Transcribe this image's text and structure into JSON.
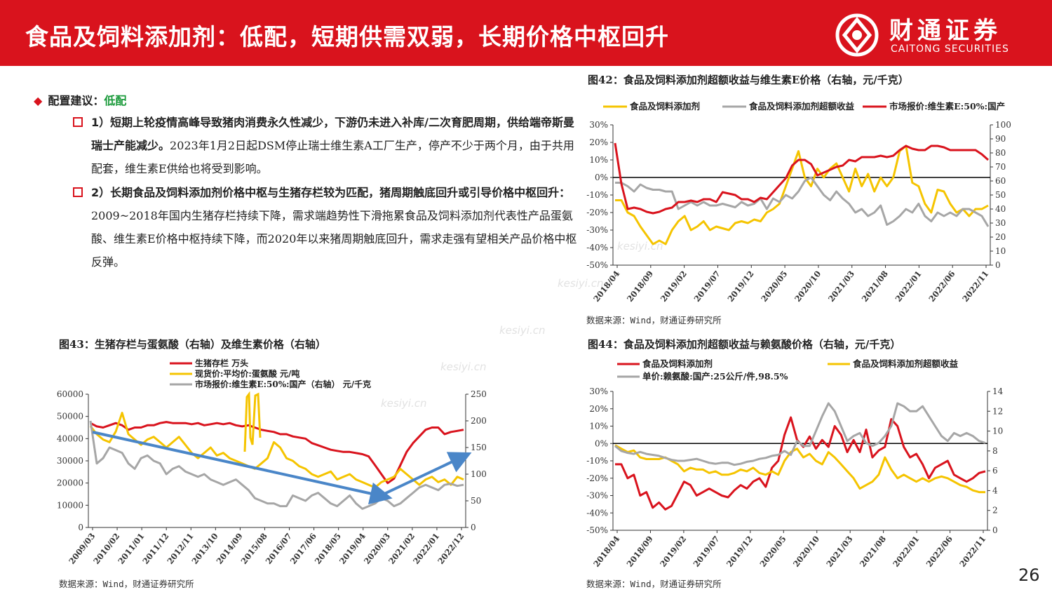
{
  "header": {
    "title": "食品及饲料添加剂：低配，短期供需双弱，长期价格中枢回升",
    "logo_cn": "财通证券",
    "logo_en": "CAITONG SECURITIES"
  },
  "recommendation": {
    "label": "配置建议：",
    "value": "低配"
  },
  "points": [
    {
      "bold": "1）短期上轮疫情高峰导致猪肉消费永久性减少，下游仍未进入补库/二次育肥周期，供给端帝斯曼瑞士产能减少。",
      "text": "2023年1月2日起DSM停止瑞士维生素A工厂生产，停产不少于两个月，由于共用配套，维生素E供给也将受到影响。"
    },
    {
      "bold": "2）长期食品及饲料添加剂价格中枢与生猪存栏较为匹配，猪周期触底回升或引导价格中枢回升：",
      "text": "2009~2018年国内生猪存栏持续下降，需求端趋势性下滑拖累食品及饲料添加剂代表性产品蛋氨酸、维生素E价格中枢持续下降，而2020年以来猪周期触底回升，需求走强有望相关产品价格中枢反弹。"
    }
  ],
  "watermark": "kesiyi.cn",
  "page_number": "26",
  "colors": {
    "red": "#d9131d",
    "yellow": "#f5c400",
    "gray": "#a6a6a6",
    "green": "#1a9a3a",
    "blue": "#4a86c8"
  },
  "chart_data": [
    {
      "id": "fig42",
      "type": "line",
      "title": "图42：食品及饲料添加剂超额收益与维生素E价格（右轴，元/千克）",
      "source": "数据来源：Wind，财通证券研究所",
      "x_ticks": [
        "2018/04",
        "2018/09",
        "2019/02",
        "2019/07",
        "2019/12",
        "2020/05",
        "2020/10",
        "2021/03",
        "2021/08",
        "2022/01",
        "2022/06",
        "2022/11"
      ],
      "y_left": {
        "min": -50,
        "max": 30,
        "step": 10,
        "unit": "%",
        "tick_labels": [
          "30%",
          "20%",
          "10%",
          "0%",
          "-10%",
          "-20%",
          "-30%",
          "-40%",
          "-50%"
        ]
      },
      "y_right": {
        "min": 0,
        "max": 100,
        "step": 10,
        "tick_labels": [
          "100",
          "90",
          "80",
          "70",
          "60",
          "50",
          "40",
          "30",
          "20",
          "10",
          "0"
        ]
      },
      "zero_line": true,
      "series": [
        {
          "name": "食品及饲料添加剂",
          "color": "yellow",
          "axis": "left",
          "values": [
            -13,
            -13,
            -20,
            -22,
            -28,
            -33,
            -38,
            -36,
            -38,
            -30,
            -25,
            -22,
            -30,
            -28,
            -25,
            -30,
            -28,
            -29,
            -30,
            -26,
            -25,
            -26,
            -24,
            -25,
            -20,
            -18,
            -15,
            -5,
            5,
            15,
            0,
            -5,
            5,
            0,
            5,
            8,
            0,
            -8,
            5,
            -5,
            2,
            -8,
            0,
            -5,
            0,
            15,
            18,
            -3,
            -5,
            -15,
            -20,
            -7,
            -8,
            -15,
            -20,
            -18,
            -22,
            -18,
            -18,
            -16
          ]
        },
        {
          "name": "食品及饲料添加剂超额收益",
          "color": "gray",
          "axis": "left",
          "values": [
            -3,
            -3,
            -5,
            -8,
            -4,
            -6,
            -7,
            -7,
            -8,
            -8,
            -18,
            -16,
            -14,
            -16,
            -14,
            -16,
            -16,
            -15,
            -16,
            -17,
            -14,
            -16,
            -15,
            -12,
            -18,
            -12,
            -14,
            -10,
            -12,
            -8,
            -2,
            0,
            -5,
            -10,
            -13,
            -8,
            -12,
            -15,
            -20,
            -18,
            -22,
            -20,
            -16,
            -27,
            -25,
            -22,
            -18,
            -20,
            -15,
            -22,
            -25,
            -20,
            -22,
            -20,
            -22,
            -18,
            -18,
            -20,
            -22,
            -28
          ]
        },
        {
          "name": "市场报价:维生素E:50%:国产",
          "color": "red",
          "axis": "right",
          "values": [
            87,
            58,
            40,
            41,
            40,
            38,
            37,
            38,
            40,
            41,
            45,
            45,
            46,
            45,
            47,
            47,
            45,
            52,
            51,
            50,
            47,
            47,
            45,
            48,
            47,
            52,
            57,
            62,
            71,
            75,
            75,
            72,
            64,
            66,
            68,
            70,
            71,
            75,
            74,
            77,
            77,
            77,
            78,
            77,
            78,
            82,
            85,
            83,
            82,
            82,
            85,
            85,
            84,
            82,
            82,
            82,
            82,
            82,
            79,
            75
          ]
        }
      ]
    },
    {
      "id": "fig43",
      "type": "line",
      "title": "图43：生猪存栏与蛋氨酸（右轴）及维生素价格（右轴）",
      "source": "数据来源：Wind，财通证券研究所",
      "x_ticks": [
        "2009/03",
        "2010/02",
        "2011/01",
        "2011/12",
        "2012/11",
        "2013/10",
        "2014/09",
        "2015/08",
        "2016/07",
        "2017/06",
        "2018/05",
        "2019/04",
        "2020/03",
        "2021/02",
        "2022/01",
        "2022/12"
      ],
      "y_left": {
        "min": 0,
        "max": 60000,
        "step": 10000,
        "tick_labels": [
          "60000",
          "50000",
          "40000",
          "30000",
          "20000",
          "10000",
          "0"
        ]
      },
      "y_right": {
        "min": 0,
        "max": 250,
        "step": 50,
        "tick_labels": [
          "250",
          "200",
          "150",
          "100",
          "50",
          "0"
        ]
      },
      "series": [
        {
          "name": "生猪存栏 万头",
          "color": "red",
          "axis": "left",
          "values": [
            47000,
            45500,
            45000,
            46000,
            47000,
            46000,
            44000,
            45000,
            45000,
            46000,
            46000,
            47000,
            47500,
            47000,
            47000,
            47000,
            46500,
            47000,
            46000,
            46500,
            47000,
            46500,
            47000,
            46000,
            45500,
            46000,
            45000,
            44000,
            43500,
            43000,
            42000,
            42000,
            41000,
            40500,
            40000,
            38000,
            37000,
            36000,
            35000,
            34500,
            34000,
            34000,
            33500,
            33000,
            32000,
            28000,
            24000,
            20000,
            22000,
            28000,
            34000,
            38000,
            41000,
            44000,
            45000,
            45000,
            42000,
            43000,
            43500,
            44000
          ]
        },
        {
          "name": "现货价:平均价:蛋氨酸 元/吨",
          "color": "yellow",
          "axis": "right",
          "values": [
            190,
            175,
            165,
            160,
            180,
            215,
            175,
            165,
            155,
            165,
            170,
            160,
            150,
            160,
            170,
            155,
            140,
            130,
            140,
            150,
            135,
            140,
            130,
            125,
            120,
            115,
            110,
            120,
            130,
            160,
            150,
            130,
            125,
            115,
            110,
            100,
            95,
            100,
            105,
            90,
            95,
            100,
            90,
            85,
            80,
            75,
            85,
            90,
            95,
            110,
            100,
            90,
            80,
            90,
            95,
            85,
            90,
            80,
            95,
            90
          ]
        },
        {
          "name": "市场报价:维生素E:50%:国产（右轴） 元/千克",
          "color": "gray",
          "axis": "right",
          "values": [
            200,
            120,
            130,
            150,
            145,
            140,
            120,
            110,
            130,
            135,
            125,
            120,
            100,
            110,
            115,
            105,
            100,
            95,
            100,
            90,
            85,
            80,
            85,
            90,
            80,
            70,
            55,
            50,
            45,
            45,
            40,
            40,
            60,
            55,
            50,
            60,
            65,
            55,
            45,
            40,
            50,
            60,
            45,
            35,
            40,
            45,
            55,
            50,
            40,
            45,
            55,
            65,
            75,
            80,
            75,
            70,
            80,
            82,
            78,
            80
          ]
        }
      ],
      "annotations": [
        "trend-arrow-down",
        "trend-arrow-up"
      ]
    },
    {
      "id": "fig44",
      "type": "line",
      "title": "图44：食品及饲料添加剂超额收益与赖氨酸价格（右轴，元/千克）",
      "source": "数据来源：Wind，财通证券研究所",
      "x_ticks": [
        "2018/04",
        "2018/09",
        "2019/02",
        "2019/07",
        "2019/12",
        "2020/05",
        "2020/10",
        "2021/03",
        "2021/08",
        "2022/01",
        "2022/06",
        "2022/11"
      ],
      "y_left": {
        "min": -50,
        "max": 30,
        "step": 10,
        "unit": "%",
        "tick_labels": [
          "30%",
          "20%",
          "10%",
          "0%",
          "-10%",
          "-20%",
          "-30%",
          "-40%",
          "-50%"
        ]
      },
      "y_right": {
        "min": 0,
        "max": 14,
        "step": 2,
        "tick_labels": [
          "14",
          "12",
          "10",
          "8",
          "6",
          "4",
          "2",
          "0"
        ]
      },
      "zero_line": true,
      "series": [
        {
          "name": "食品及饲料添加剂",
          "color": "red",
          "axis": "left",
          "values": [
            -12,
            -12,
            -20,
            -18,
            -30,
            -28,
            -37,
            -34,
            -38,
            -36,
            -29,
            -22,
            -24,
            -30,
            -28,
            -26,
            -28,
            -30,
            -31,
            -27,
            -24,
            -26,
            -22,
            -20,
            -25,
            -14,
            -10,
            5,
            15,
            2,
            -2,
            4,
            -3,
            2,
            -2,
            10,
            5,
            -5,
            2,
            -5,
            8,
            -8,
            -4,
            -2,
            14,
            10,
            -2,
            -8,
            -6,
            -12,
            -20,
            -14,
            -12,
            -10,
            -18,
            -20,
            -22,
            -20,
            -17,
            -16
          ]
        },
        {
          "name": "食品及饲料添加剂超额收益",
          "color": "yellow",
          "axis": "left",
          "values": [
            -1,
            -3,
            -5,
            -4,
            -8,
            -9,
            -9,
            -9,
            -8,
            -10,
            -12,
            -16,
            -14,
            -15,
            -15,
            -17,
            -16,
            -18,
            -18,
            -17,
            -15,
            -16,
            -14,
            -17,
            -18,
            -16,
            -18,
            -10,
            -5,
            -3,
            -8,
            -6,
            -10,
            -12,
            -5,
            -8,
            -12,
            -16,
            -20,
            -26,
            -24,
            -22,
            -18,
            -8,
            -15,
            -20,
            -18,
            -20,
            -22,
            -20,
            -22,
            -20,
            -19,
            -20,
            -22,
            -24,
            -25,
            -27,
            -28,
            -28
          ]
        },
        {
          "name": "单价:赖氨酸:国产:25公斤/件,98.5%",
          "color": "gray",
          "axis": "right",
          "values": [
            8.5,
            8,
            7.8,
            7.7,
            7.9,
            7.7,
            7.6,
            7.5,
            7.3,
            7.1,
            7.0,
            7.0,
            7.1,
            7.2,
            7.0,
            6.8,
            6.7,
            6.8,
            6.8,
            6.6,
            6.7,
            6.9,
            7.0,
            7.2,
            7.3,
            7.5,
            7.6,
            8.0,
            7.6,
            9.0,
            8.5,
            8.5,
            10.0,
            11.5,
            12.8,
            12.0,
            10.5,
            9.0,
            9.5,
            9.8,
            8.8,
            8.5,
            8.8,
            9.5,
            10.5,
            12.8,
            12.5,
            12.0,
            12.0,
            12.5,
            11.5,
            10.5,
            9.5,
            9.0,
            9.8,
            9.5,
            9.8,
            9.5,
            9.0,
            8.8
          ]
        }
      ]
    }
  ]
}
